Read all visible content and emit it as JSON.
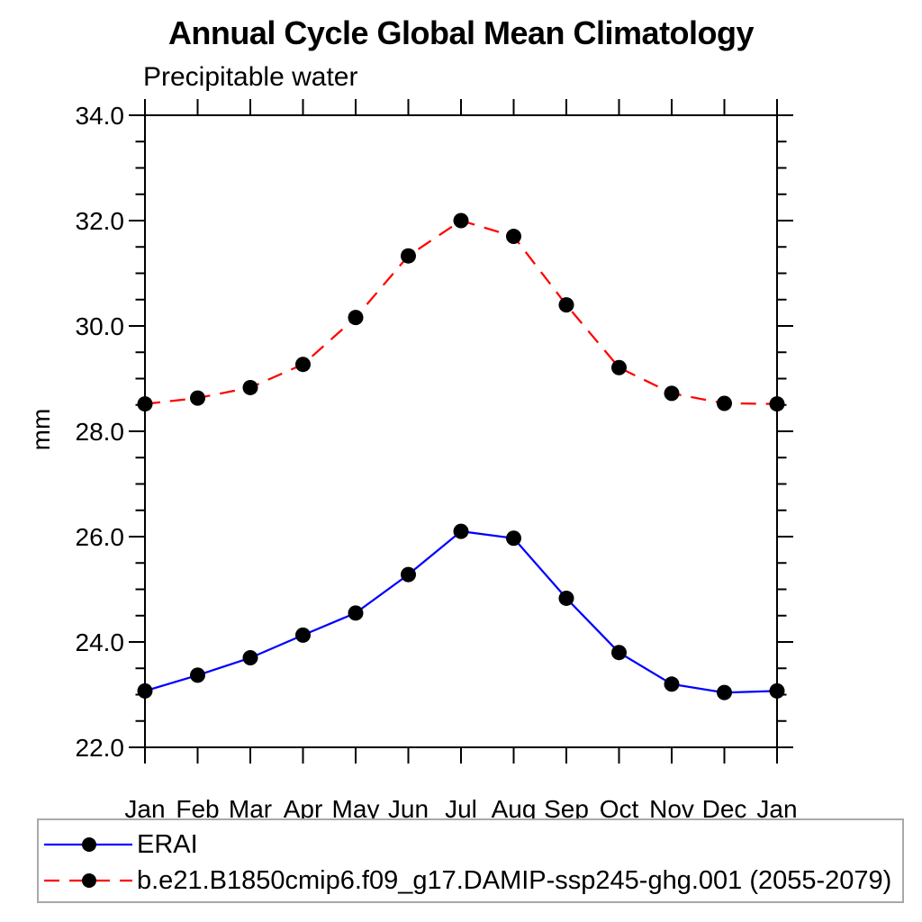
{
  "chart_data": {
    "type": "line",
    "title": "Annual Cycle Global Mean Climatology",
    "subtitle": "Precipitable water",
    "ylabel": "mm",
    "xlabel": "",
    "categories": [
      "Jan",
      "Feb",
      "Mar",
      "Apr",
      "May",
      "Jun",
      "Jul",
      "Aug",
      "Sep",
      "Oct",
      "Nov",
      "Dec",
      "Jan"
    ],
    "ylim": [
      22.0,
      34.0
    ],
    "y_major_step": 2.0,
    "y_minor_step": 0.5,
    "y_tick_labels": [
      "22.0",
      "24.0",
      "26.0",
      "28.0",
      "30.0",
      "32.0",
      "34.0"
    ],
    "grid": false,
    "legend_position": "bottom-left-box",
    "marker": {
      "shape": "filled-circle",
      "color": "#000000"
    },
    "axis_color": "#000000",
    "series": [
      {
        "name": "ERAI",
        "color": "#0000ff",
        "style": "solid",
        "values": [
          23.07,
          23.37,
          23.7,
          24.13,
          24.55,
          25.28,
          26.1,
          25.97,
          24.83,
          23.8,
          23.2,
          23.04,
          23.07
        ]
      },
      {
        "name": "b.e21.B1850cmip6.f09_g17.DAMIP-ssp245-ghg.001 (2055-2079)",
        "color": "#ff0000",
        "style": "dashed",
        "values": [
          28.52,
          28.63,
          28.83,
          29.27,
          30.16,
          31.33,
          32.0,
          31.7,
          30.4,
          29.21,
          28.72,
          28.53,
          28.52
        ]
      }
    ]
  }
}
